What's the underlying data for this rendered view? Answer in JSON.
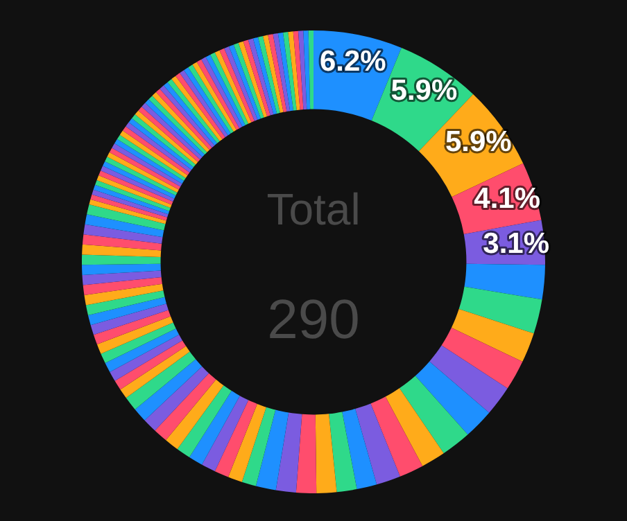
{
  "chart_data": {
    "type": "donut",
    "categories": [
      null,
      null,
      null,
      null,
      null,
      null,
      null,
      null,
      null,
      null,
      null,
      null,
      null,
      null,
      null,
      null,
      null,
      null,
      null,
      null,
      null,
      null,
      null,
      null,
      null,
      null,
      null,
      null,
      null,
      null,
      null,
      null,
      null,
      null,
      null,
      null,
      null,
      null,
      null,
      null,
      null,
      null,
      null,
      null,
      null,
      null,
      null,
      null,
      null,
      null,
      null,
      null,
      null,
      null,
      null,
      null,
      null,
      null,
      null,
      null,
      null,
      null,
      null,
      null,
      null,
      null,
      null,
      null,
      null,
      null,
      null,
      null,
      null,
      null,
      null,
      null,
      null,
      null,
      null,
      null,
      null,
      null,
      null,
      null,
      null,
      null,
      null,
      null,
      null,
      null,
      null,
      null,
      null,
      null,
      null,
      null,
      null,
      null,
      null,
      null,
      null,
      null,
      null,
      null,
      null,
      null,
      null,
      null,
      null,
      null,
      null,
      null
    ],
    "values": [
      6.2,
      5.9,
      5.9,
      4.1,
      3.1,
      2.4,
      2.4,
      2.1,
      2.1,
      2.1,
      2.1,
      2.1,
      1.7,
      1.7,
      1.7,
      1.4,
      1.4,
      1.4,
      1.4,
      1.4,
      1.4,
      1.0,
      1.0,
      1.0,
      1.0,
      1.0,
      1.0,
      1.0,
      1.0,
      1.0,
      1.0,
      1.0,
      0.7,
      0.7,
      0.7,
      0.7,
      0.7,
      0.7,
      0.7,
      0.7,
      0.7,
      0.7,
      0.7,
      0.7,
      0.7,
      0.7,
      0.7,
      0.7,
      0.7,
      0.7,
      0.7,
      0.7,
      0.35,
      0.35,
      0.35,
      0.35,
      0.35,
      0.35,
      0.35,
      0.35,
      0.35,
      0.35,
      0.35,
      0.35,
      0.35,
      0.35,
      0.35,
      0.35,
      0.35,
      0.35,
      0.35,
      0.35,
      0.35,
      0.35,
      0.35,
      0.35,
      0.35,
      0.35,
      0.35,
      0.35,
      0.35,
      0.35,
      0.35,
      0.35,
      0.35,
      0.35,
      0.35,
      0.35,
      0.35,
      0.35,
      0.35,
      0.35,
      0.35,
      0.35,
      0.35,
      0.35,
      0.35,
      0.35,
      0.35,
      0.35,
      0.35,
      0.35,
      0.35,
      0.35,
      0.35,
      0.35,
      0.35,
      0.35,
      0.35,
      0.35,
      0.35,
      0.35
    ],
    "colors": [
      "#1e90ff",
      "#2fd98a",
      "#ffab1a",
      "#ff4d6d",
      "#7b5ce0",
      "#1e90ff",
      "#2fd98a",
      "#ffab1a",
      "#ff4d6d",
      "#7b5ce0",
      "#1e90ff",
      "#2fd98a",
      "#ffab1a",
      "#ff4d6d",
      "#7b5ce0",
      "#1e90ff",
      "#2fd98a",
      "#ffab1a",
      "#ff4d6d",
      "#7b5ce0",
      "#1e90ff",
      "#2fd98a",
      "#ffab1a",
      "#ff4d6d",
      "#7b5ce0",
      "#1e90ff",
      "#2fd98a",
      "#ffab1a",
      "#ff4d6d",
      "#7b5ce0",
      "#1e90ff",
      "#2fd98a",
      "#ffab1a",
      "#ff4d6d",
      "#7b5ce0",
      "#1e90ff",
      "#2fd98a",
      "#ffab1a",
      "#ff4d6d",
      "#7b5ce0",
      "#1e90ff",
      "#2fd98a",
      "#ffab1a",
      "#ff4d6d",
      "#7b5ce0",
      "#1e90ff",
      "#2fd98a",
      "#ffab1a",
      "#ff4d6d",
      "#7b5ce0",
      "#1e90ff",
      "#2fd98a",
      "#ffab1a",
      "#ff4d6d",
      "#7b5ce0",
      "#1e90ff",
      "#2fd98a",
      "#ffab1a",
      "#ff4d6d",
      "#7b5ce0",
      "#1e90ff",
      "#2fd98a",
      "#ffab1a",
      "#ff4d6d",
      "#7b5ce0",
      "#1e90ff",
      "#2fd98a",
      "#ffab1a",
      "#ff4d6d",
      "#7b5ce0",
      "#1e90ff",
      "#2fd98a",
      "#ffab1a",
      "#ff4d6d",
      "#7b5ce0",
      "#1e90ff",
      "#2fd98a",
      "#ffab1a",
      "#ff4d6d",
      "#7b5ce0",
      "#1e90ff",
      "#2fd98a",
      "#ffab1a",
      "#ff4d6d",
      "#7b5ce0",
      "#1e90ff",
      "#2fd98a",
      "#ffab1a",
      "#ff4d6d",
      "#7b5ce0",
      "#1e90ff",
      "#2fd98a",
      "#ffab1a",
      "#ff4d6d",
      "#7b5ce0",
      "#1e90ff",
      "#2fd98a",
      "#ffab1a",
      "#ff4d6d",
      "#7b5ce0",
      "#1e90ff",
      "#2fd98a",
      "#ffab1a",
      "#ff4d6d",
      "#7b5ce0",
      "#1e90ff",
      "#2fd98a",
      "#ffab1a",
      "#ff4d6d",
      "#7b5ce0",
      "#1e90ff",
      "#2fd98a"
    ],
    "value_labels": [
      "6.2%",
      "5.9%",
      "5.9%",
      "4.1%",
      "3.1%",
      null,
      null,
      null,
      null,
      null,
      null,
      null,
      null,
      null,
      null,
      null,
      null,
      null,
      null,
      null,
      null,
      null,
      null,
      null,
      null,
      null,
      null,
      null,
      null,
      null,
      null,
      null,
      null,
      null,
      null,
      null,
      null,
      null,
      null,
      null,
      null,
      null,
      null,
      null,
      null,
      null,
      null,
      null,
      null,
      null,
      null,
      null,
      null,
      null,
      null,
      null,
      null,
      null,
      null,
      null,
      null,
      null,
      null,
      null,
      null,
      null,
      null,
      null,
      null,
      null,
      null,
      null,
      null,
      null,
      null,
      null,
      null,
      null,
      null,
      null,
      null,
      null,
      null,
      null,
      null,
      null,
      null,
      null,
      null,
      null,
      null,
      null,
      null,
      null,
      null,
      null,
      null,
      null,
      null,
      null,
      null,
      null,
      null,
      null,
      null,
      null,
      null,
      null,
      null,
      null,
      null,
      null
    ],
    "annotations": [
      "Total",
      "290"
    ]
  }
}
